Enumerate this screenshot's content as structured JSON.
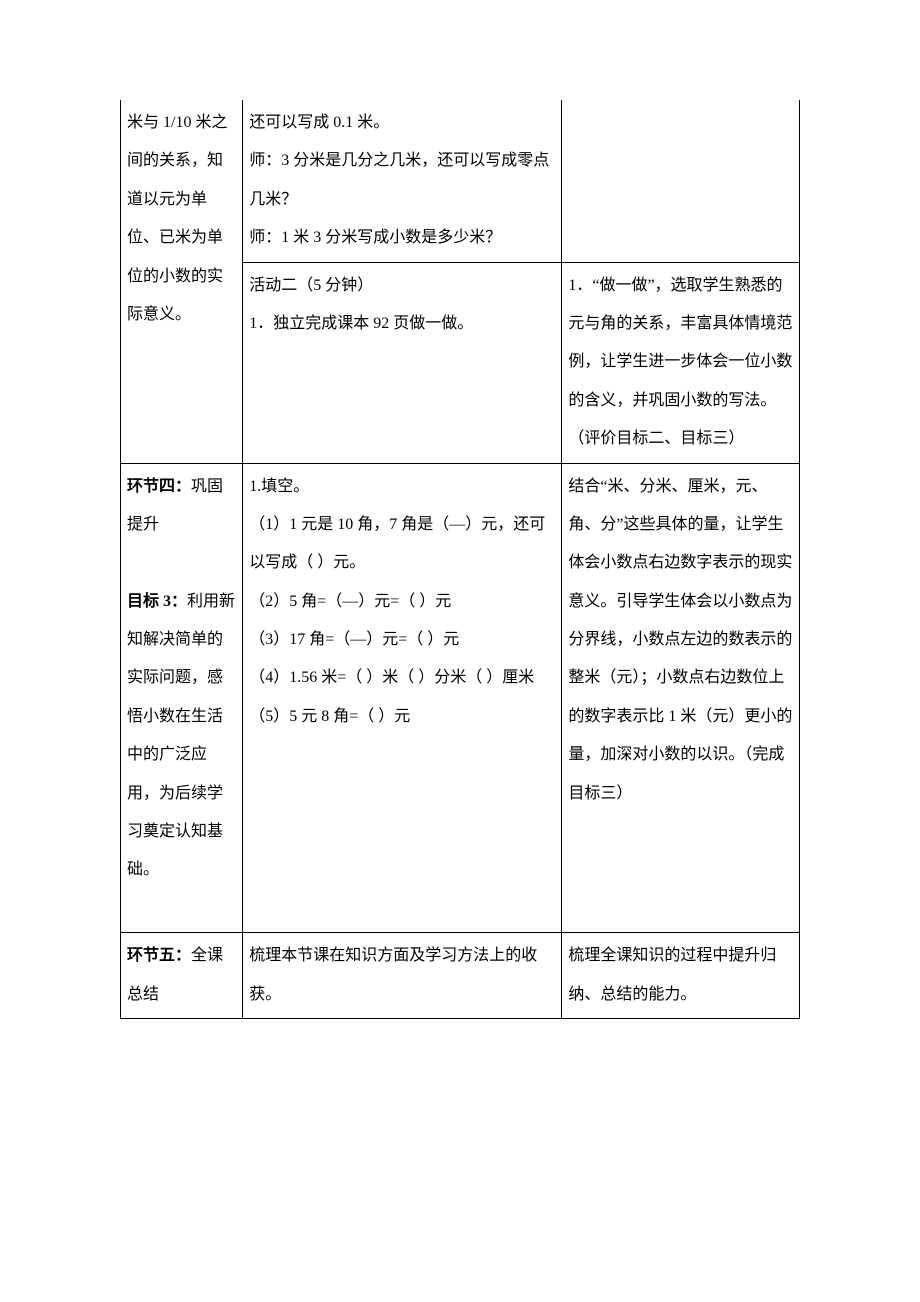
{
  "row1": {
    "col1": "米与 1/10 米之间的关系，知道以元为单位、已米为单位的小数的实际意义。",
    "col2a": "还可以写成 0.1 米。\n师：3 分米是几分之几米，还可以写成零点几米？\n师：1 米 3 分米写成小数是多少米？",
    "col2b": "活动二（5 分钟）\n1．独立完成课本 92 页做一做。",
    "col3a": "",
    "col3b": "1．“做一做”，选取学生熟悉的元与角的关系，丰富具体情境范例，让学生进一步体会一位小数的含义，并巩固小数的写法。（评价目标二、目标三）"
  },
  "row2": {
    "col1_label": "环节四：",
    "col1_title": "巩固提升",
    "col1_goal_label": "目标 3：",
    "col1_goal_text": "利用新知解决简单的实际问题，感悟小数在生活中的广泛应用，为后续学习奠定认知基础。",
    "col2": "1.填空。\n（1）1 元是 10 角，7 角是（—）元，还可以写成（  ）元。\n（2）5 角=（—）元=（  ）元\n（3）17 角=（—）元=（  ）元\n（4）1.56 米=（ ）米（ ）分米（ ）厘米\n（5）5 元 8 角=（  ）元",
    "col3": "结合“米、分米、厘米，元、角、分”这些具体的量，让学生体会小数点右边数字表示的现实意义。引导学生体会以小数点为分界线，小数点左边的数表示的整米（元）；小数点右边数位上的数字表示比 1 米（元）更小的量，加深对小数的以识。（完成目标三）"
  },
  "row3": {
    "col1_label": "环节五：",
    "col1_title": "全课总结",
    "col2": "梳理本节课在知识方面及学习方法上的收获。",
    "col3": "梳理全课知识的过程中提升归纳、总结的能力。"
  }
}
